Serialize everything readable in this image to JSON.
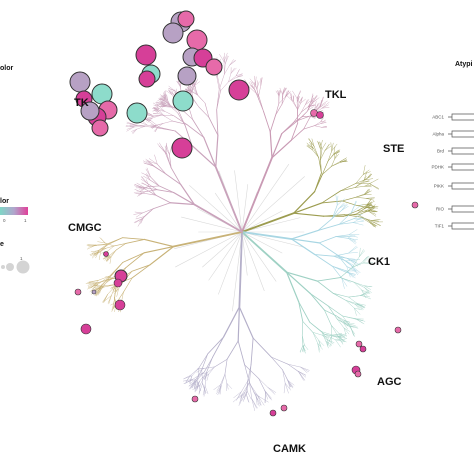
{
  "groups": {
    "tk": {
      "label": "TK",
      "color": "#c9a2bb"
    },
    "tkl": {
      "label": "TKL",
      "color": "#c99ab4"
    },
    "ste": {
      "label": "STE",
      "color": "#9c9c4f"
    },
    "ck1": {
      "label": "CK1",
      "color": "#a8d6e3"
    },
    "agc": {
      "label": "AGC",
      "color": "#9fd1c4"
    },
    "camk": {
      "label": "CAMK",
      "color": "#b4afc9"
    },
    "cmgc": {
      "label": "CMGC",
      "color": "#c8b277"
    },
    "other": {
      "label": "",
      "color": "#d9d9d9"
    }
  },
  "legend_left": {
    "color_title": "olor",
    "color_title2": "lor",
    "scale_low": "0",
    "scale_high": "1",
    "size_title": "e",
    "size_mark": "1",
    "gradient": [
      "#7fd6c6",
      "#b0a6cc",
      "#e0409a"
    ]
  },
  "legend_right": {
    "title": "Atypi",
    "items": [
      "ABC1",
      "Alpha",
      "Brd",
      "PDHK",
      "PIKK",
      "RIO",
      "TIF1"
    ]
  },
  "node_colors": {
    "magenta": "#d63f98",
    "lilac": "#b7a1c4",
    "teal": "#8ddccb",
    "pink": "#e66aa9"
  }
}
